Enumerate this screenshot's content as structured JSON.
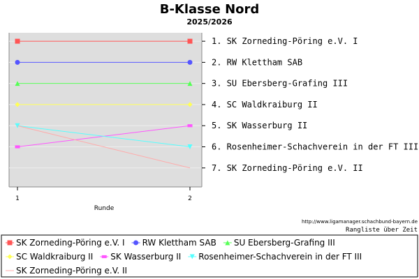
{
  "chart_data": {
    "type": "line",
    "title": "B-Klasse Nord",
    "subtitle": "2025/2026",
    "xlabel": "Runde",
    "ylabel": "",
    "categories": [
      "1",
      "2"
    ],
    "y_axis": "rank",
    "ylim": [
      0.6,
      7.9
    ],
    "grid": true,
    "legend_position": "bottom",
    "series": [
      {
        "name": "SK Zorneding-Pöring e.V. I",
        "values": [
          1,
          1
        ],
        "color": "#ff5555",
        "marker": "square"
      },
      {
        "name": "RW Klettham SAB",
        "values": [
          2,
          2
        ],
        "color": "#5555ff",
        "marker": "circle"
      },
      {
        "name": "SU Ebersberg-Grafing III",
        "values": [
          3,
          3
        ],
        "color": "#55ff55",
        "marker": "triangle-up"
      },
      {
        "name": "SC Waldkraiburg II",
        "values": [
          4,
          4
        ],
        "color": "#ffff55",
        "marker": "diamond"
      },
      {
        "name": "SK Wasserburg II",
        "values": [
          6,
          5
        ],
        "color": "#ff55ff",
        "marker": "rect"
      },
      {
        "name": "Rosenheimer-Schachverein in der FT III",
        "values": [
          5,
          6
        ],
        "color": "#55ffff",
        "marker": "triangle-down"
      },
      {
        "name": "SK Zorneding-Pöring e.V. II",
        "values": [
          5,
          7
        ],
        "color": "#ffaaaa",
        "marker": "none"
      }
    ],
    "ranking": [
      "1. SK Zorneding-Pöring e.V. I",
      "2. RW Klettham SAB",
      "3. SU Ebersberg-Grafing III",
      "4. SC Waldkraiburg II",
      "5. SK Wasserburg II",
      "6. Rosenheimer-Schachverein in der FT III",
      "7. SK Zorneding-Pöring e.V. II"
    ]
  },
  "footer": {
    "url": "http://www.ligamanager.schachbund-bayern.de",
    "caption": "Rangliste über Zeit"
  }
}
